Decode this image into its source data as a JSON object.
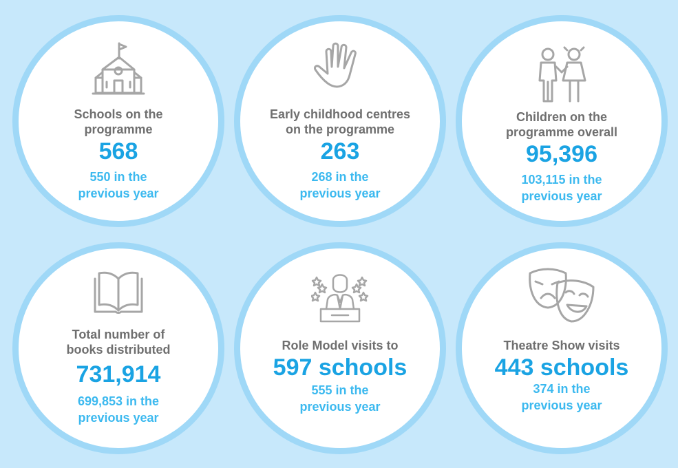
{
  "colors": {
    "background": "#c7e8fb",
    "ring": "#9fd8f7",
    "label": "#6f6f6f",
    "value": "#1aa3e3",
    "previous": "#3cb9ef",
    "icon": "#a6a6a6"
  },
  "stats": [
    {
      "icon": "school-icon",
      "label_lines": [
        "Schools on the",
        "programme"
      ],
      "value": "568",
      "previous_lines": [
        "550 in the",
        "previous year"
      ]
    },
    {
      "icon": "hand-icon",
      "label_lines": [
        "Early childhood centres",
        "on the programme"
      ],
      "value": "263",
      "previous_lines": [
        "268 in the",
        "previous year"
      ]
    },
    {
      "icon": "children-icon",
      "label_lines": [
        "Children on the",
        "programme overall"
      ],
      "value": "95,396",
      "previous_lines": [
        "103,115 in the",
        "previous year"
      ]
    },
    {
      "icon": "book-icon",
      "label_lines": [
        "Total number of",
        "books distributed"
      ],
      "value": "731,914",
      "previous_lines": [
        "699,853 in the",
        "previous year"
      ]
    },
    {
      "icon": "role-model-icon",
      "label_lines": [
        "Role Model visits to"
      ],
      "value": "597 schools",
      "previous_lines": [
        "555 in the",
        "previous year"
      ]
    },
    {
      "icon": "theatre-masks-icon",
      "label_lines": [
        "Theatre Show visits"
      ],
      "value": "443 schools",
      "previous_lines": [
        "374 in the",
        "previous year"
      ]
    }
  ]
}
